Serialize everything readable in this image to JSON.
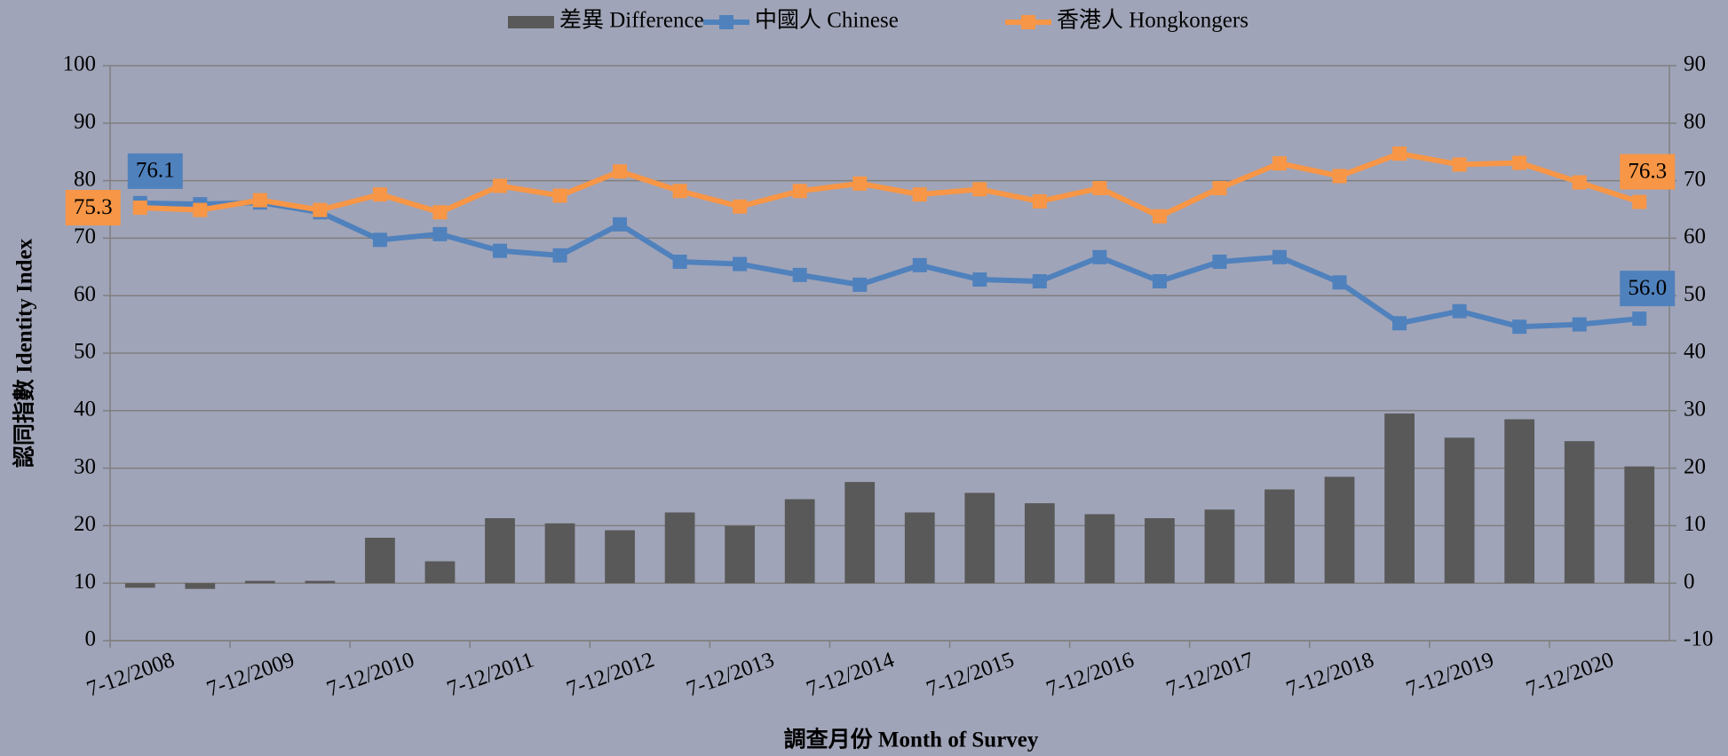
{
  "chart_data": {
    "type": "bar-line",
    "x_label": "調查月份 Month of Survey",
    "y_label": "認同指數 Identity Index",
    "categories": [
      "7-12/2008",
      null,
      "7-12/2009",
      null,
      "7-12/2010",
      null,
      "7-12/2011",
      null,
      "7-12/2012",
      null,
      "7-12/2013",
      null,
      "7-12/2014",
      null,
      "7-12/2015",
      null,
      "7-12/2016",
      null,
      "7-12/2017",
      null,
      "7-12/2018",
      null,
      "7-12/2019",
      null,
      "7-12/2020",
      null
    ],
    "series": [
      {
        "name": "差異 Difference",
        "type": "bar",
        "axis": "y2",
        "color": "#595959",
        "values": [
          -0.8,
          -1.0,
          0.4,
          0.4,
          7.9,
          3.8,
          11.3,
          10.4,
          9.2,
          12.3,
          10.0,
          14.6,
          17.6,
          12.3,
          15.7,
          13.9,
          12.0,
          11.3,
          12.8,
          16.3,
          18.5,
          29.5,
          25.3,
          28.5,
          24.7,
          20.3
        ]
      },
      {
        "name": "中國人 Chinese",
        "type": "line",
        "color": "#4f81bd",
        "values": [
          76.1,
          75.9,
          76.2,
          74.5,
          69.7,
          70.7,
          67.8,
          67.0,
          72.4,
          65.9,
          65.5,
          63.6,
          61.9,
          65.3,
          62.8,
          62.5,
          66.7,
          62.5,
          65.9,
          66.7,
          62.3,
          55.2,
          57.3,
          54.6,
          55.0,
          56.0
        ],
        "value_labels": [
          "76.1",
          null,
          null,
          null,
          null,
          null,
          null,
          null,
          null,
          null,
          null,
          null,
          null,
          null,
          null,
          null,
          null,
          null,
          null,
          null,
          null,
          null,
          null,
          null,
          null,
          "56.0"
        ]
      },
      {
        "name": "香港人 Hongkongers",
        "type": "line",
        "color": "#f79646",
        "values": [
          75.3,
          74.9,
          76.6,
          74.9,
          77.6,
          74.5,
          79.1,
          77.4,
          81.6,
          78.2,
          75.5,
          78.2,
          79.5,
          77.6,
          78.5,
          76.4,
          78.7,
          73.8,
          78.7,
          83.0,
          80.8,
          84.7,
          82.8,
          83.1,
          79.7,
          76.3
        ],
        "value_labels": [
          "75.3",
          null,
          null,
          null,
          null,
          null,
          null,
          null,
          null,
          null,
          null,
          null,
          null,
          null,
          null,
          null,
          null,
          null,
          null,
          null,
          null,
          null,
          null,
          null,
          null,
          "76.3"
        ]
      }
    ],
    "ylim": [
      0,
      100
    ],
    "yticks": [
      0,
      10,
      20,
      30,
      40,
      50,
      60,
      70,
      80,
      90,
      100
    ],
    "y2lim": [
      -10,
      90
    ],
    "y2ticks": [
      -10,
      0,
      10,
      20,
      30,
      40,
      50,
      60,
      70,
      80,
      90
    ],
    "grid": true,
    "legend": "top"
  }
}
